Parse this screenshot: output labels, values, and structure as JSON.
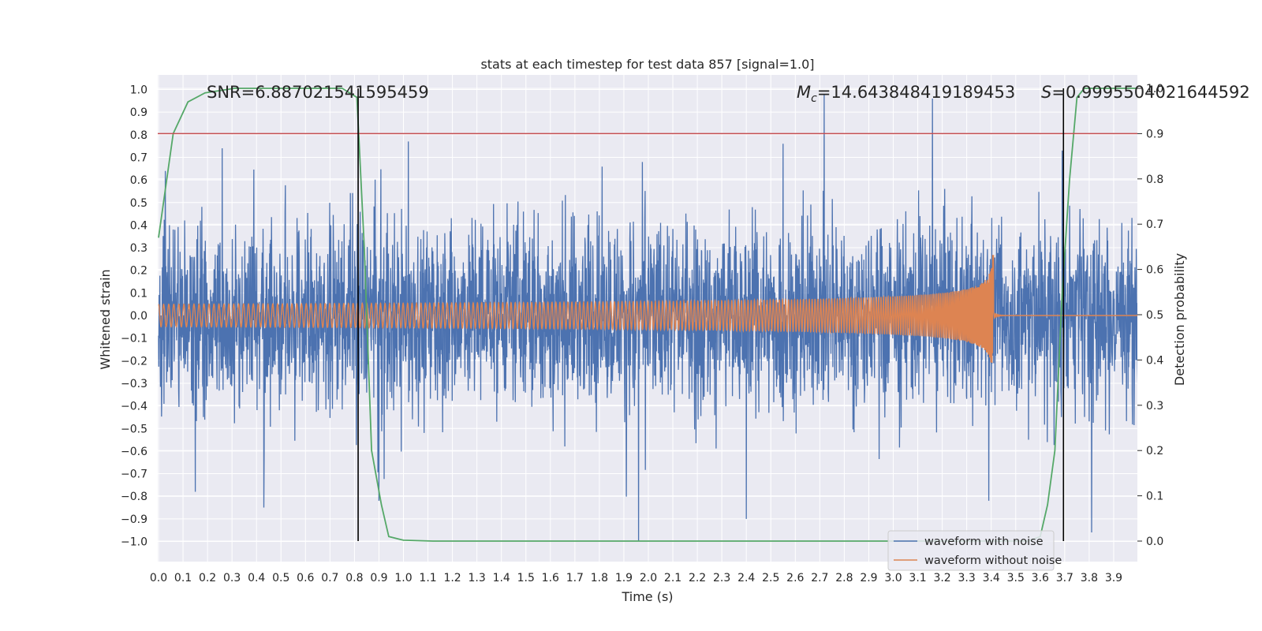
{
  "chart_data": {
    "type": "line",
    "title": "stats at each timestep for test data 857 [signal=1.0]",
    "xlabel": "Time (s)",
    "ylabel": "Whitened strain",
    "y2label": "Detection probability",
    "xlim": [
      0.0,
      4.0
    ],
    "ylim": [
      -1.1,
      1.05
    ],
    "y2lim": [
      -0.05,
      1.03
    ],
    "x_ticks": [
      0.0,
      0.1,
      0.2,
      0.3,
      0.4,
      0.5,
      0.6,
      0.7,
      0.8,
      0.9,
      1.0,
      1.1,
      1.2,
      1.3,
      1.4,
      1.5,
      1.6,
      1.7,
      1.8,
      1.9,
      2.0,
      2.1,
      2.2,
      2.3,
      2.4,
      2.5,
      2.6,
      2.7,
      2.8,
      2.9,
      3.0,
      3.1,
      3.2,
      3.3,
      3.4,
      3.5,
      3.6,
      3.7,
      3.8,
      3.9
    ],
    "y_ticks": [
      1.0,
      0.9,
      0.8,
      0.7,
      0.6,
      0.5,
      0.4,
      0.3,
      0.2,
      0.1,
      0.0,
      -0.1,
      -0.2,
      -0.3,
      -0.4,
      -0.5,
      -0.6,
      -0.7,
      -0.8,
      -0.9,
      -1.0
    ],
    "y2_ticks": [
      1.0,
      0.9,
      0.8,
      0.7,
      0.6,
      0.5,
      0.4,
      0.3,
      0.2,
      0.1,
      0.0
    ],
    "grid": true,
    "legend_position": "bottom-right",
    "background": "#eaeaf2",
    "series": [
      {
        "name": "waveform with noise",
        "color": "#4c72b0",
        "axis": "left",
        "noise_amplitude": 0.42,
        "notable_peaks": [
          {
            "x": 3.16,
            "y": 0.96
          },
          {
            "x": 1.02,
            "y": 0.77
          },
          {
            "x": 0.26,
            "y": 0.74
          },
          {
            "x": 2.55,
            "y": 0.76
          },
          {
            "x": 3.69,
            "y": 0.73
          },
          {
            "x": 1.96,
            "y": -1.0
          },
          {
            "x": 2.4,
            "y": -0.9
          },
          {
            "x": 3.81,
            "y": -0.96
          },
          {
            "x": 0.43,
            "y": -0.85
          },
          {
            "x": 0.9,
            "y": -0.82
          },
          {
            "x": 0.15,
            "y": -0.78
          },
          {
            "x": 3.39,
            "y": -0.82
          }
        ]
      },
      {
        "name": "waveform without noise",
        "color": "#dd8452",
        "axis": "left",
        "merger_time": 3.41,
        "peak_amplitude": 0.27
      },
      {
        "name": "Detection probability",
        "color": "#55a868",
        "axis": "right",
        "x": [
          0.0,
          0.06,
          0.12,
          0.19,
          0.25,
          0.31,
          0.38,
          0.5,
          0.62,
          0.75,
          0.81,
          0.84,
          0.87,
          0.91,
          0.94,
          1.0,
          1.12,
          1.3,
          1.6,
          2.0,
          2.5,
          3.0,
          3.2,
          3.4,
          3.5,
          3.55,
          3.6,
          3.63,
          3.66,
          3.69,
          3.72,
          3.75,
          3.78,
          3.85,
          3.91,
          4.0
        ],
        "y": [
          0.67,
          0.9,
          0.97,
          0.99,
          0.995,
          1.0,
          1.0,
          1.0,
          1.0,
          1.0,
          0.98,
          0.65,
          0.2,
          0.08,
          0.01,
          0.002,
          0.0,
          0.0,
          0.0,
          0.0,
          0.0,
          0.0,
          0.0,
          0.0,
          0.0,
          0.0,
          0.01,
          0.08,
          0.2,
          0.55,
          0.8,
          0.98,
          1.0,
          1.0,
          1.0,
          1.0
        ]
      }
    ],
    "threshold": {
      "axis": "right",
      "value": 0.9,
      "color": "#c44e52"
    },
    "vertical_lines": [
      0.815,
      3.695
    ],
    "annotations": {
      "snr": "SNR=6.887021541595459",
      "mc_label": "M",
      "mc_sub": "c",
      "mc_value": "=14.643848419189453",
      "s_label": "S",
      "s_value": "=0.9995504021644592"
    }
  }
}
